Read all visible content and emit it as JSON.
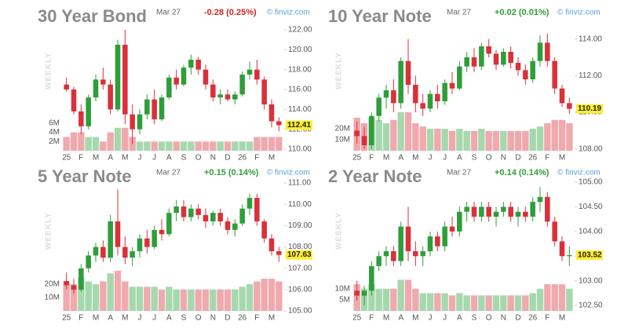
{
  "chart_data": [
    {
      "type": "candlestick",
      "title": "30 Year Bond",
      "date": "Mar 27",
      "change": "-0.28 (0.25%)",
      "change_color": "#d62728",
      "watermark": "© finviz.com",
      "side_label": "WEEKLY",
      "categories": [
        "25",
        null,
        "F",
        null,
        "M",
        null,
        "A",
        null,
        "M",
        null,
        "J",
        null,
        "J",
        null,
        "A",
        null,
        "S",
        null,
        "O",
        null,
        "N",
        null,
        "D",
        null,
        "26",
        null,
        "F",
        null,
        "M",
        null
      ],
      "open": [
        116.5,
        116.0,
        113.8,
        112.3,
        115.2,
        117.0,
        116.5,
        114.0,
        120.5,
        113.5,
        112.0,
        113.5,
        115.0,
        113.0,
        115.2,
        117.2,
        116.5,
        118.2,
        119.0,
        118.0,
        116.5,
        115.2,
        115.5,
        115.0,
        115.5,
        117.5,
        118.0,
        117.0,
        114.5,
        112.8
      ],
      "high": [
        117.2,
        116.3,
        114.5,
        115.5,
        117.5,
        118.2,
        117.0,
        121.0,
        122.0,
        114.5,
        114.0,
        115.5,
        116.0,
        115.5,
        117.5,
        118.0,
        118.5,
        119.5,
        119.3,
        118.5,
        117.0,
        116.0,
        116.0,
        115.8,
        117.8,
        118.8,
        119.0,
        117.3,
        115.0,
        113.2
      ],
      "low": [
        115.8,
        113.5,
        111.5,
        112.0,
        114.8,
        116.0,
        113.5,
        113.8,
        112.5,
        110.5,
        111.5,
        113.0,
        112.5,
        112.8,
        115.0,
        116.0,
        116.3,
        117.5,
        117.5,
        116.0,
        114.8,
        114.5,
        114.8,
        114.5,
        115.3,
        117.0,
        116.5,
        114.0,
        112.2,
        111.8
      ],
      "close": [
        116.0,
        113.8,
        112.3,
        115.2,
        117.0,
        116.5,
        114.0,
        120.5,
        113.5,
        112.0,
        113.5,
        115.0,
        113.0,
        115.2,
        117.2,
        116.5,
        118.2,
        119.0,
        118.0,
        116.5,
        115.2,
        115.5,
        115.0,
        115.5,
        117.5,
        118.0,
        117.0,
        114.5,
        112.8,
        112.41
      ],
      "volume": [
        3,
        4,
        4,
        3,
        3,
        2,
        4,
        5,
        5,
        3,
        2,
        2,
        2,
        2,
        2,
        2,
        2,
        2,
        2,
        2,
        2,
        2,
        2,
        2,
        2,
        2,
        3,
        3,
        3,
        3
      ],
      "ylim": [
        109.84,
        122.79
      ],
      "yticks": [
        {
          "value": 110,
          "label": "110.00"
        },
        {
          "value": 112,
          "label": "112.00"
        },
        {
          "value": 114,
          "label": "114.00"
        },
        {
          "value": 116,
          "label": "116.00"
        },
        {
          "value": 118,
          "label": "118.00"
        },
        {
          "value": 120,
          "label": "120.00"
        },
        {
          "value": 122,
          "label": "122.00"
        }
      ],
      "vlim": [
        0,
        28
      ],
      "vticks": [
        {
          "value": 2,
          "label": "2M"
        },
        {
          "value": 4,
          "label": "4M"
        },
        {
          "value": 6,
          "label": "6M"
        }
      ],
      "up_color": "#2e9e3a",
      "down_color": "#d9303a",
      "up_volume_color": "#a6d8ad",
      "down_volume_color": "#f0a9ae",
      "last_color": "#ffee33"
    },
    {
      "type": "candlestick",
      "title": "10 Year Note",
      "date": "Mar 27",
      "change": "+0.02 (0.01%)",
      "change_color": "#2e9e3a",
      "watermark": "© finviz.com",
      "side_label": "WEEKLY",
      "categories": [
        "25",
        null,
        "F",
        null,
        "M",
        null,
        "A",
        null,
        "M",
        null,
        "J",
        null,
        "J",
        null,
        "A",
        null,
        "S",
        null,
        "O",
        null,
        "N",
        null,
        "D",
        null,
        "26",
        null,
        "F",
        null,
        "M",
        null
      ],
      "open": [
        109.0,
        108.7,
        108.2,
        109.8,
        110.8,
        111.2,
        110.5,
        112.8,
        111.5,
        110.5,
        110.2,
        111.0,
        110.6,
        111.6,
        111.3,
        112.5,
        113.0,
        112.5,
        113.6,
        113.2,
        112.6,
        113.3,
        112.7,
        112.3,
        111.8,
        112.8,
        113.8,
        112.8,
        111.3,
        110.5
      ],
      "high": [
        109.5,
        109.2,
        110.0,
        111.0,
        111.5,
        111.8,
        113.0,
        114.0,
        112.0,
        111.0,
        111.2,
        111.5,
        111.8,
        112.2,
        112.8,
        113.3,
        113.5,
        113.8,
        114.0,
        113.4,
        113.5,
        113.6,
        113.0,
        112.6,
        113.0,
        114.2,
        114.3,
        113.0,
        111.5,
        110.8
      ],
      "low": [
        108.3,
        108.0,
        108.0,
        109.5,
        110.2,
        110.0,
        110.2,
        111.0,
        110.0,
        109.8,
        110.0,
        110.2,
        110.4,
        111.0,
        111.2,
        112.2,
        112.2,
        112.3,
        113.0,
        112.3,
        112.5,
        112.4,
        112.0,
        111.5,
        111.6,
        112.5,
        112.5,
        111.0,
        110.3,
        109.9
      ],
      "close": [
        108.7,
        108.2,
        109.8,
        110.8,
        111.2,
        110.5,
        112.8,
        111.5,
        110.5,
        110.2,
        111.0,
        110.6,
        111.6,
        111.3,
        112.5,
        113.0,
        112.5,
        113.6,
        113.2,
        112.6,
        113.3,
        112.7,
        112.3,
        111.8,
        112.8,
        113.8,
        112.8,
        111.3,
        110.5,
        110.19
      ],
      "volume": [
        30,
        25,
        30,
        28,
        25,
        28,
        35,
        35,
        25,
        22,
        20,
        20,
        20,
        18,
        20,
        18,
        18,
        20,
        18,
        18,
        18,
        18,
        18,
        18,
        20,
        22,
        25,
        28,
        28,
        25
      ],
      "ylim": [
        107.9,
        114.93
      ],
      "yticks": [
        {
          "value": 108,
          "label": "108.00"
        },
        {
          "value": 110,
          "label": "110.00"
        },
        {
          "value": 112,
          "label": "112.00"
        },
        {
          "value": 114,
          "label": "114.00"
        }
      ],
      "vlim": [
        0,
        117
      ],
      "vticks": [
        {
          "value": 10,
          "label": "10M"
        },
        {
          "value": 20,
          "label": "20M"
        }
      ],
      "up_color": "#2e9e3a",
      "down_color": "#d9303a",
      "up_volume_color": "#a6d8ad",
      "down_volume_color": "#f0a9ae",
      "last_color": "#ffee33"
    },
    {
      "type": "candlestick",
      "title": "5 Year Note",
      "date": "Mar 27",
      "change": "+0.15 (0.14%)",
      "change_color": "#2e9e3a",
      "watermark": "© finviz.com",
      "side_label": "WEEKLY",
      "categories": [
        "25",
        null,
        "F",
        null,
        "M",
        null,
        "A",
        null,
        "M",
        null,
        "J",
        null,
        "J",
        null,
        "A",
        null,
        "S",
        null,
        "O",
        null,
        "N",
        null,
        "D",
        null,
        "26",
        null,
        "F",
        null,
        "M",
        null
      ],
      "open": [
        106.4,
        106.2,
        106.0,
        107.0,
        107.6,
        108.0,
        107.5,
        109.2,
        108.0,
        107.5,
        107.8,
        108.4,
        108.0,
        108.8,
        108.6,
        109.6,
        109.9,
        109.4,
        109.8,
        109.5,
        109.2,
        109.6,
        109.2,
        108.8,
        109.1,
        109.8,
        110.3,
        109.2,
        108.4,
        107.8
      ],
      "high": [
        106.8,
        106.5,
        107.2,
        107.8,
        108.2,
        108.3,
        109.5,
        110.7,
        108.5,
        108.0,
        108.6,
        108.8,
        109.0,
        109.3,
        109.8,
        110.2,
        110.2,
        110.0,
        110.0,
        109.8,
        109.7,
        109.8,
        109.4,
        109.3,
        110.0,
        110.5,
        110.5,
        109.3,
        108.6,
        108.0
      ],
      "low": [
        106.0,
        105.8,
        105.9,
        106.8,
        107.3,
        107.3,
        107.3,
        107.6,
        107.2,
        107.1,
        107.5,
        107.7,
        107.9,
        108.3,
        108.5,
        109.2,
        109.2,
        109.2,
        109.3,
        108.9,
        109.0,
        109.0,
        108.6,
        108.5,
        109.0,
        109.5,
        109.0,
        108.2,
        107.6,
        107.3
      ],
      "close": [
        106.2,
        106.0,
        107.0,
        107.6,
        108.0,
        107.5,
        109.2,
        108.0,
        107.5,
        107.8,
        108.4,
        108.0,
        108.8,
        108.6,
        109.6,
        109.9,
        109.4,
        109.8,
        109.5,
        109.2,
        109.6,
        109.2,
        108.8,
        109.1,
        109.8,
        110.3,
        109.2,
        108.4,
        107.8,
        107.63
      ],
      "volume": [
        22,
        20,
        25,
        22,
        20,
        22,
        28,
        30,
        22,
        18,
        18,
        18,
        18,
        16,
        18,
        16,
        16,
        16,
        16,
        16,
        16,
        16,
        16,
        16,
        18,
        20,
        22,
        24,
        24,
        22
      ],
      "ylim": [
        105.0,
        111.04
      ],
      "yticks": [
        {
          "value": 105,
          "label": "105.00"
        },
        {
          "value": 106,
          "label": "106.00"
        },
        {
          "value": 107,
          "label": "107.00"
        },
        {
          "value": 108,
          "label": "108.00"
        },
        {
          "value": 109,
          "label": "109.00"
        },
        {
          "value": 110,
          "label": "110.00"
        },
        {
          "value": 111,
          "label": "111.00"
        }
      ],
      "vlim": [
        0,
        96
      ],
      "vticks": [
        {
          "value": 10,
          "label": "10M"
        },
        {
          "value": 20,
          "label": "20M"
        }
      ],
      "up_color": "#2e9e3a",
      "down_color": "#d9303a",
      "up_volume_color": "#a6d8ad",
      "down_volume_color": "#f0a9ae",
      "last_color": "#ffee33"
    },
    {
      "type": "candlestick",
      "title": "2 Year Note",
      "date": "Mar 27",
      "change": "+0.14 (0.14%)",
      "change_color": "#2e9e3a",
      "watermark": "© finviz.com",
      "side_label": "WEEKLY",
      "categories": [
        "25",
        null,
        "F",
        null,
        "M",
        null,
        "A",
        null,
        "M",
        null,
        "J",
        null,
        "J",
        null,
        "A",
        null,
        "S",
        null,
        "O",
        null,
        "N",
        null,
        "D",
        null,
        "26",
        null,
        "F",
        null,
        "M",
        null
      ],
      "open": [
        102.8,
        102.7,
        102.8,
        103.3,
        103.5,
        103.6,
        103.4,
        104.1,
        103.6,
        103.5,
        103.6,
        103.9,
        103.7,
        104.1,
        104.0,
        104.4,
        104.5,
        104.3,
        104.5,
        104.3,
        104.4,
        104.5,
        104.3,
        104.4,
        104.3,
        104.6,
        104.7,
        104.2,
        103.8,
        103.5
      ],
      "high": [
        103.0,
        102.9,
        103.4,
        103.6,
        103.7,
        103.7,
        104.2,
        104.5,
        103.8,
        103.7,
        104.0,
        104.0,
        104.2,
        104.3,
        104.5,
        104.6,
        104.6,
        104.6,
        104.6,
        104.5,
        104.6,
        104.6,
        104.5,
        104.5,
        104.7,
        104.9,
        104.8,
        104.3,
        103.9,
        103.7
      ],
      "low": [
        102.6,
        102.5,
        102.7,
        103.2,
        103.3,
        103.3,
        103.3,
        103.4,
        103.3,
        103.3,
        103.5,
        103.6,
        103.6,
        103.9,
        103.9,
        104.2,
        104.2,
        104.2,
        104.2,
        104.1,
        104.3,
        104.2,
        104.1,
        104.2,
        104.2,
        104.4,
        104.1,
        103.7,
        103.4,
        103.3
      ],
      "close": [
        102.7,
        102.8,
        103.3,
        103.5,
        103.6,
        103.4,
        104.1,
        103.6,
        103.5,
        103.6,
        103.9,
        103.7,
        104.1,
        104.0,
        104.4,
        104.5,
        104.3,
        104.5,
        104.3,
        104.4,
        104.5,
        104.3,
        104.4,
        104.3,
        104.6,
        104.7,
        104.2,
        103.8,
        103.5,
        103.52
      ],
      "volume": [
        12,
        10,
        12,
        10,
        10,
        10,
        14,
        14,
        10,
        8,
        8,
        8,
        8,
        7,
        8,
        7,
        7,
        7,
        7,
        7,
        7,
        7,
        7,
        7,
        8,
        10,
        12,
        12,
        12,
        10
      ],
      "ylim": [
        102.39,
        105.0
      ],
      "yticks": [
        {
          "value": 102.5,
          "label": "102.50"
        },
        {
          "value": 103,
          "label": "103.00"
        },
        {
          "value": 103.5,
          "label": "103.50"
        },
        {
          "value": 104,
          "label": "104.00"
        },
        {
          "value": 104.5,
          "label": "104.50"
        },
        {
          "value": 105,
          "label": "105.00"
        }
      ],
      "vlim": [
        0,
        58
      ],
      "vticks": [
        {
          "value": 5,
          "label": "5M"
        },
        {
          "value": 10,
          "label": "10M"
        }
      ],
      "up_color": "#2e9e3a",
      "down_color": "#d9303a",
      "up_volume_color": "#a6d8ad",
      "down_volume_color": "#f0a9ae",
      "last_color": "#ffee33"
    }
  ]
}
